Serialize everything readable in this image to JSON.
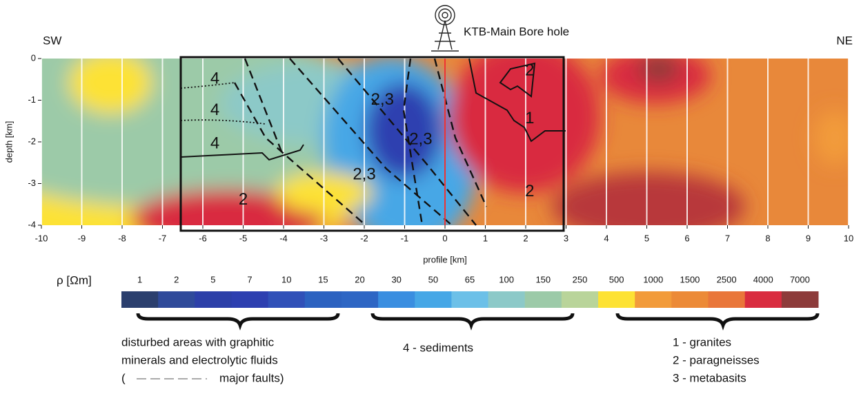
{
  "chart_data": {
    "type": "contour",
    "left_label": "SW",
    "right_label": "NE",
    "site_label": "KTB-Main Bore hole",
    "x_label": "profile [km]",
    "y_label": "depth [km]",
    "xlim": [
      -10,
      10
    ],
    "xticks": [
      -10,
      -9,
      -8,
      -7,
      -6,
      -5,
      -4,
      -3,
      -2,
      -1,
      0,
      1,
      2,
      3,
      4,
      5,
      6,
      7,
      8,
      9,
      10
    ],
    "ylim": [
      -4,
      0
    ],
    "yticks": [
      0,
      -1,
      -2,
      -3,
      -4
    ],
    "grid": true,
    "annotations": [
      {
        "text": "4",
        "x": -5.7,
        "y": -0.5
      },
      {
        "text": "4",
        "x": -5.7,
        "y": -1.25
      },
      {
        "text": "4",
        "x": -5.7,
        "y": -2.05
      },
      {
        "text": "2,3",
        "x": -1.55,
        "y": -1.0
      },
      {
        "text": "2,3",
        "x": -0.6,
        "y": -1.95
      },
      {
        "text": "2,3",
        "x": -2.0,
        "y": -2.8
      },
      {
        "text": "2",
        "x": -5.0,
        "y": -3.4
      },
      {
        "text": "2",
        "x": 2.1,
        "y": -0.3
      },
      {
        "text": "1",
        "x": 2.1,
        "y": -1.45
      },
      {
        "text": "2",
        "x": 2.1,
        "y": -3.2
      }
    ],
    "colorbar": {
      "label": "ρ  [Ωm]",
      "levels": [
        1,
        2,
        5,
        7,
        10,
        15,
        20,
        30,
        50,
        65,
        100,
        150,
        250,
        500,
        1000,
        1500,
        2500,
        4000,
        7000
      ],
      "colors": [
        "#2b3f6e",
        "#2f4a9a",
        "#2c3fa8",
        "#2d3fb0",
        "#3050b8",
        "#2c62c0",
        "#2e66c4",
        "#3a8ee0",
        "#46a7e6",
        "#6cc0e8",
        "#8cc9c8",
        "#9ccaa8",
        "#b9d49a",
        "#fde234",
        "#f29b3a",
        "#ec8a37",
        "#e9763a",
        "#d92c3f",
        "#8d3b3a"
      ]
    },
    "legend": {
      "conductive": [
        "disturbed areas with  graphitic",
        "minerals and electrolytic fluids",
        "(",
        "major faults)"
      ],
      "sediments": "4 - sediments",
      "rocks": [
        "1 - granites",
        "2 - paragneisses",
        "3 - metabasits"
      ]
    }
  }
}
